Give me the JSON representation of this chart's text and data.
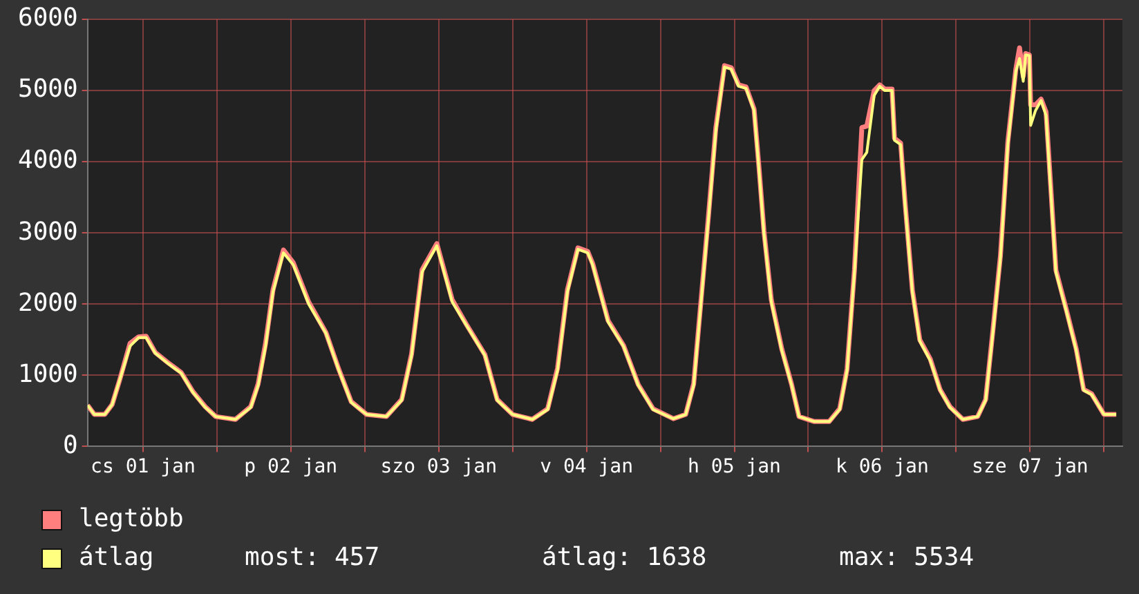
{
  "chart_data": {
    "type": "line",
    "xlim": [
      "--01-01T03:00",
      "--01-08T03:00"
    ],
    "xticks": [
      {
        "value": "--01-01T12:00",
        "label": "cs 01 jan"
      },
      {
        "value": "--01-02",
        "label": null
      },
      {
        "value": "--01-02T12:00",
        "label": "p 02 jan"
      },
      {
        "value": "--01-03",
        "label": null
      },
      {
        "value": "--01-03T12:00",
        "label": "szo 03 jan"
      },
      {
        "value": "--01-04",
        "label": null
      },
      {
        "value": "--01-04T12:00",
        "label": "v 04 jan"
      },
      {
        "value": "--01-05",
        "label": null
      },
      {
        "value": "--01-05T12:00",
        "label": "h 05 jan"
      },
      {
        "value": "--01-06",
        "label": null
      },
      {
        "value": "--01-06T12:00",
        "label": "k 06 jan"
      },
      {
        "value": "--01-07",
        "label": null
      },
      {
        "value": "--01-07T12:00",
        "label": "sze 07 jan"
      },
      {
        "value": "--01-08",
        "label": null
      }
    ],
    "ylim": [
      0,
      6000
    ],
    "yticks": [
      0,
      1000,
      2000,
      3000,
      4000,
      5000,
      6000
    ],
    "grid": true,
    "legend": "bottom left",
    "marker": "none",
    "line_style": "solid",
    "x": [
      "--01-01T03:00",
      "--01-01T04:06",
      "--01-01T05:48",
      "--01-01T07:00",
      "--01-01T08:12",
      "--01-01T09:54",
      "--01-01T11:18",
      "--01-01T12:30",
      "--01-01T14:00",
      "--01-01T16:00",
      "--01-01T18:12",
      "--01-01T20:06",
      "--01-01T22:06",
      "--01-01T23:48",
      "--01-02T03:00",
      "--01-02T05:30",
      "--01-02T06:42",
      "--01-02T07:54",
      "--01-02T09:06",
      "--01-02T10:48",
      "--01-02T12:24",
      "--01-02T14:54",
      "--01-02T17:42",
      "--01-02T19:48",
      "--01-02T21:48",
      "--01-03T00:18",
      "--01-03T03:30",
      "--01-03T06:00",
      "--01-03T07:36",
      "--01-03T09:18",
      "--01-03T11:42",
      "--01-03T14:12",
      "--01-03T16:36",
      "--01-03T19:30",
      "--01-03T21:30",
      "--01-04T00:00",
      "--01-04T03:12",
      "--01-04T05:42",
      "--01-04T07:18",
      "--01-04T08:54",
      "--01-04T10:36",
      "--01-04T12:12",
      "--01-04T13:00",
      "--01-04T15:30",
      "--01-04T18:00",
      "--01-04T20:24",
      "--01-04T22:48",
      "--01-05T02:06",
      "--01-05T04:06",
      "--01-05T05:24",
      "--01-05T06:36",
      "--01-05T07:48",
      "--01-05T09:00",
      "--01-05T10:24",
      "--01-05T11:30",
      "--01-05T12:42",
      "--01-05T13:54",
      "--01-05T15:12",
      "--01-05T16:00",
      "--01-05T16:48",
      "--01-05T18:00",
      "--01-05T19:42",
      "--01-05T21:18",
      "--01-05T22:30",
      "--01-06T01:00",
      "--01-06T03:24",
      "--01-06T05:06",
      "--01-06T06:18",
      "--01-06T07:30",
      "--01-06T08:42",
      "--01-06T09:30",
      "--01-06T10:42",
      "--01-06T11:36",
      "--01-06T12:24",
      "--01-06T13:36",
      "--01-06T14:00",
      "--01-06T15:00",
      "--01-06T15:42",
      "--01-06T16:54",
      "--01-06T18:06",
      "--01-06T19:48",
      "--01-06T21:24",
      "--01-06T23:00",
      "--01-07T01:06",
      "--01-07T03:30",
      "--01-07T04:48",
      "--01-07T06:00",
      "--01-07T07:12",
      "--01-07T08:24",
      "--01-07T09:42",
      "--01-07T10:18",
      "--01-07T10:54",
      "--01-07T11:18",
      "--01-07T11:54",
      "--01-07T12:06",
      "--01-07T12:54",
      "--01-07T13:48",
      "--01-07T14:36",
      "--01-07T15:24",
      "--01-07T16:12",
      "--01-07T17:54",
      "--01-07T19:30",
      "--01-07T20:42",
      "--01-07T22:00",
      "--01-08T00:00",
      "--01-08T02:00"
    ],
    "series": [
      {
        "name": "legtöbb",
        "color": "#ff7f7f",
        "values": [
          580,
          450,
          450,
          590,
          930,
          1450,
          1540,
          1550,
          1320,
          1180,
          1040,
          770,
          560,
          420,
          380,
          560,
          880,
          1450,
          2200,
          2760,
          2580,
          2030,
          1600,
          1080,
          630,
          450,
          420,
          660,
          1300,
          2480,
          2850,
          2060,
          1700,
          1290,
          660,
          450,
          380,
          530,
          1100,
          2200,
          2790,
          2740,
          2570,
          1770,
          1420,
          870,
          530,
          390,
          450,
          880,
          2060,
          3240,
          4480,
          5350,
          5320,
          5080,
          5050,
          4740,
          3920,
          3030,
          2060,
          1370,
          870,
          420,
          350,
          350,
          530,
          1090,
          2480,
          4480,
          4500,
          5000,
          5080,
          5020,
          5020,
          4330,
          4260,
          3440,
          2200,
          1500,
          1230,
          800,
          560,
          380,
          420,
          660,
          1650,
          2680,
          4280,
          5300,
          5600,
          5200,
          5520,
          5500,
          4800,
          4800,
          4880,
          4700,
          3600,
          2480,
          1920,
          1370,
          800,
          740,
          450,
          450
        ]
      },
      {
        "name": "átlag",
        "color": "#ffff80",
        "values": [
          580,
          450,
          450,
          590,
          930,
          1410,
          1530,
          1530,
          1310,
          1170,
          1030,
          760,
          550,
          420,
          380,
          550,
          860,
          1410,
          2170,
          2720,
          2550,
          2000,
          1590,
          1070,
          620,
          450,
          420,
          650,
          1280,
          2450,
          2820,
          2030,
          1690,
          1280,
          650,
          450,
          380,
          520,
          1070,
          2170,
          2770,
          2720,
          2550,
          1750,
          1410,
          860,
          520,
          390,
          450,
          860,
          2030,
          3200,
          4440,
          5330,
          5300,
          5060,
          5030,
          4720,
          3890,
          3000,
          2030,
          1350,
          860,
          420,
          350,
          350,
          520,
          1070,
          2450,
          4030,
          4130,
          4930,
          5060,
          5000,
          5000,
          4300,
          4240,
          3410,
          2170,
          1480,
          1210,
          790,
          550,
          380,
          420,
          650,
          1620,
          2650,
          4240,
          5270,
          5450,
          5130,
          5500,
          5490,
          4510,
          4720,
          4860,
          4650,
          3550,
          2450,
          1900,
          1350,
          790,
          730,
          450,
          450
        ]
      }
    ],
    "annotations": [
      "most: 457",
      "átlag: 1638",
      "max: 5534"
    ]
  }
}
